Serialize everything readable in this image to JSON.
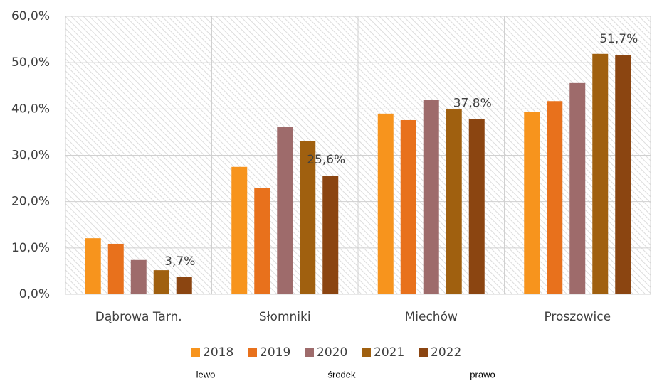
{
  "chart_data": {
    "type": "bar",
    "categories": [
      "Dąbrowa Tarn.",
      "Słomniki",
      "Miechów",
      "Proszowice"
    ],
    "series": [
      {
        "name": "2018",
        "color": "#f7941d",
        "values": [
          12.1,
          27.5,
          39.0,
          39.4
        ]
      },
      {
        "name": "2019",
        "color": "#e8711c",
        "values": [
          10.9,
          22.9,
          37.6,
          41.7
        ]
      },
      {
        "name": "2020",
        "color": "#9e6b6b",
        "values": [
          7.4,
          36.2,
          42.0,
          45.6
        ]
      },
      {
        "name": "2021",
        "color": "#a0600f",
        "values": [
          5.2,
          33.0,
          39.9,
          51.9
        ]
      },
      {
        "name": "2022",
        "color": "#8b4511",
        "values": [
          3.7,
          25.6,
          37.8,
          51.7
        ],
        "value_labels": [
          "3,7%",
          "25,6%",
          "37,8%",
          "51,7%"
        ]
      }
    ],
    "ylim": [
      0,
      60
    ],
    "yticks": [
      {
        "value": 0,
        "label": "0,0%"
      },
      {
        "value": 10,
        "label": "10,0%"
      },
      {
        "value": 20,
        "label": "20,0%"
      },
      {
        "value": 30,
        "label": "30,0%"
      },
      {
        "value": 40,
        "label": "40,0%"
      },
      {
        "value": 50,
        "label": "50,0%"
      },
      {
        "value": 60,
        "label": "60,0%"
      }
    ],
    "grid": true,
    "legend": "bottom",
    "annotations": [
      "lewo",
      "środek",
      "prawo"
    ]
  }
}
